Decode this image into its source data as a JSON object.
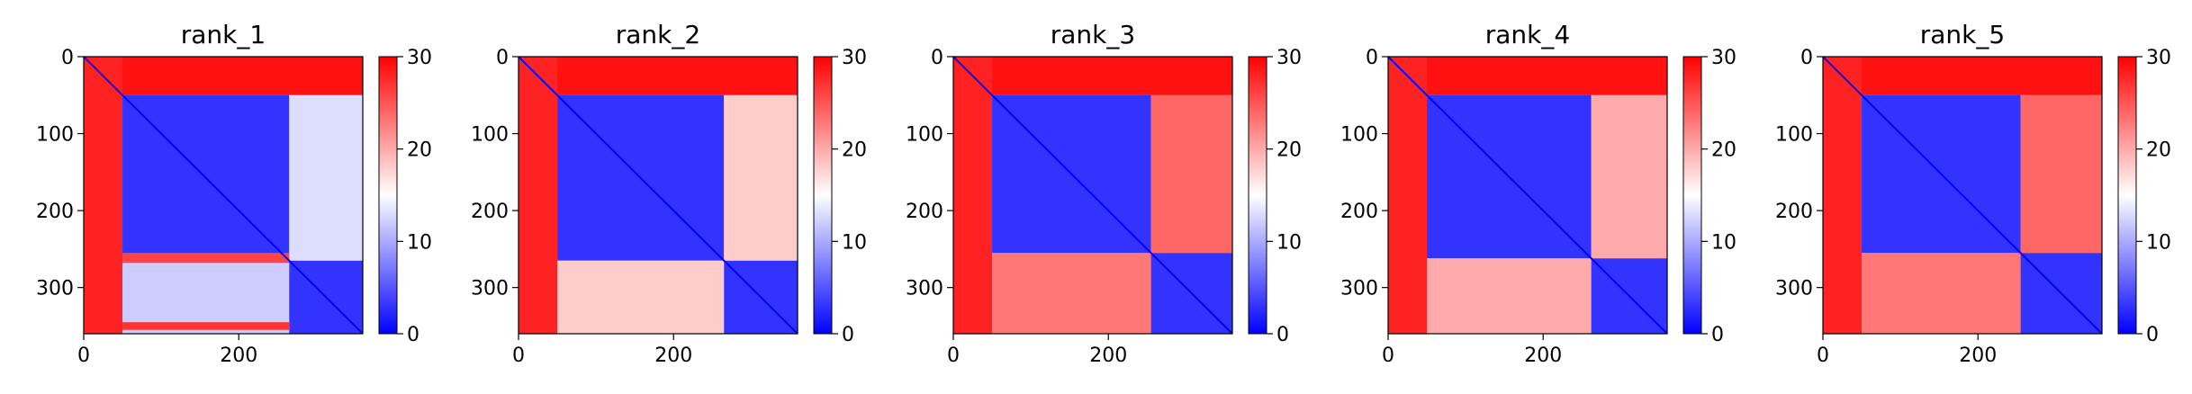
{
  "chart_data": [
    {
      "type": "heatmap",
      "title": "rank_1",
      "x_ticks": [
        "0",
        "200"
      ],
      "y_ticks": [
        "0",
        "100",
        "200",
        "300"
      ],
      "xlim": [
        0,
        360
      ],
      "ylim": [
        360,
        0
      ],
      "colorbar": {
        "ticks": [
          "0",
          "10",
          "20",
          "30"
        ],
        "range": [
          0,
          30
        ]
      },
      "colormap": [
        "#0000ff",
        "#ffffff",
        "#ff0000"
      ],
      "blocks": [
        {
          "x": [
            0,
            360
          ],
          "y": [
            0,
            50
          ],
          "value": 29
        },
        {
          "x": [
            0,
            50
          ],
          "y": [
            0,
            360
          ],
          "value": 28
        },
        {
          "x": [
            50,
            265
          ],
          "y": [
            50,
            265
          ],
          "value": 3
        },
        {
          "x": [
            265,
            360
          ],
          "y": [
            265,
            360
          ],
          "value": 3
        },
        {
          "x": [
            265,
            360
          ],
          "y": [
            50,
            265
          ],
          "value": 13
        },
        {
          "x": [
            50,
            265
          ],
          "y": [
            265,
            360
          ],
          "value": 12
        },
        {
          "x": [
            50,
            265
          ],
          "y": [
            255,
            268
          ],
          "value": 26
        },
        {
          "x": [
            50,
            265
          ],
          "y": [
            345,
            355
          ],
          "value": 27
        }
      ]
    },
    {
      "type": "heatmap",
      "title": "rank_2",
      "x_ticks": [
        "0",
        "200"
      ],
      "y_ticks": [
        "0",
        "100",
        "200",
        "300"
      ],
      "xlim": [
        0,
        360
      ],
      "ylim": [
        360,
        0
      ],
      "colorbar": {
        "ticks": [
          "0",
          "10",
          "20",
          "30"
        ],
        "range": [
          0,
          30
        ]
      },
      "colormap": [
        "#0000ff",
        "#ffffff",
        "#ff0000"
      ],
      "blocks": [
        {
          "x": [
            0,
            360
          ],
          "y": [
            0,
            50
          ],
          "value": 29
        },
        {
          "x": [
            0,
            50
          ],
          "y": [
            0,
            360
          ],
          "value": 28
        },
        {
          "x": [
            50,
            265
          ],
          "y": [
            50,
            265
          ],
          "value": 3
        },
        {
          "x": [
            265,
            360
          ],
          "y": [
            265,
            360
          ],
          "value": 3
        },
        {
          "x": [
            265,
            360
          ],
          "y": [
            50,
            265
          ],
          "value": 18
        },
        {
          "x": [
            50,
            265
          ],
          "y": [
            265,
            360
          ],
          "value": 18
        }
      ]
    },
    {
      "type": "heatmap",
      "title": "rank_3",
      "x_ticks": [
        "0",
        "200"
      ],
      "y_ticks": [
        "0",
        "100",
        "200",
        "300"
      ],
      "xlim": [
        0,
        360
      ],
      "ylim": [
        360,
        0
      ],
      "colorbar": {
        "ticks": [
          "0",
          "10",
          "20",
          "30"
        ],
        "range": [
          0,
          30
        ]
      },
      "colormap": [
        "#0000ff",
        "#ffffff",
        "#ff0000"
      ],
      "blocks": [
        {
          "x": [
            0,
            360
          ],
          "y": [
            0,
            50
          ],
          "value": 29
        },
        {
          "x": [
            0,
            50
          ],
          "y": [
            0,
            360
          ],
          "value": 28
        },
        {
          "x": [
            50,
            255
          ],
          "y": [
            50,
            255
          ],
          "value": 3
        },
        {
          "x": [
            255,
            360
          ],
          "y": [
            255,
            360
          ],
          "value": 3
        },
        {
          "x": [
            255,
            360
          ],
          "y": [
            50,
            255
          ],
          "value": 24
        },
        {
          "x": [
            50,
            255
          ],
          "y": [
            255,
            360
          ],
          "value": 23
        }
      ]
    },
    {
      "type": "heatmap",
      "title": "rank_4",
      "x_ticks": [
        "0",
        "200"
      ],
      "y_ticks": [
        "0",
        "100",
        "200",
        "300"
      ],
      "xlim": [
        0,
        360
      ],
      "ylim": [
        360,
        0
      ],
      "colorbar": {
        "ticks": [
          "0",
          "10",
          "20",
          "30"
        ],
        "range": [
          0,
          30
        ]
      },
      "colormap": [
        "#0000ff",
        "#ffffff",
        "#ff0000"
      ],
      "blocks": [
        {
          "x": [
            0,
            360
          ],
          "y": [
            0,
            50
          ],
          "value": 29
        },
        {
          "x": [
            0,
            50
          ],
          "y": [
            0,
            360
          ],
          "value": 28
        },
        {
          "x": [
            50,
            262
          ],
          "y": [
            50,
            262
          ],
          "value": 3
        },
        {
          "x": [
            262,
            360
          ],
          "y": [
            262,
            360
          ],
          "value": 3
        },
        {
          "x": [
            262,
            360
          ],
          "y": [
            50,
            262
          ],
          "value": 20
        },
        {
          "x": [
            50,
            262
          ],
          "y": [
            262,
            360
          ],
          "value": 20
        }
      ]
    },
    {
      "type": "heatmap",
      "title": "rank_5",
      "x_ticks": [
        "0",
        "200"
      ],
      "y_ticks": [
        "0",
        "100",
        "200",
        "300"
      ],
      "xlim": [
        0,
        360
      ],
      "ylim": [
        360,
        0
      ],
      "colorbar": {
        "ticks": [
          "0",
          "10",
          "20",
          "30"
        ],
        "range": [
          0,
          30
        ]
      },
      "colormap": [
        "#0000ff",
        "#ffffff",
        "#ff0000"
      ],
      "blocks": [
        {
          "x": [
            0,
            360
          ],
          "y": [
            0,
            50
          ],
          "value": 29
        },
        {
          "x": [
            0,
            50
          ],
          "y": [
            0,
            360
          ],
          "value": 28
        },
        {
          "x": [
            50,
            255
          ],
          "y": [
            50,
            255
          ],
          "value": 3
        },
        {
          "x": [
            255,
            360
          ],
          "y": [
            255,
            360
          ],
          "value": 3
        },
        {
          "x": [
            255,
            360
          ],
          "y": [
            50,
            255
          ],
          "value": 24
        },
        {
          "x": [
            50,
            255
          ],
          "y": [
            255,
            360
          ],
          "value": 23
        }
      ]
    }
  ]
}
